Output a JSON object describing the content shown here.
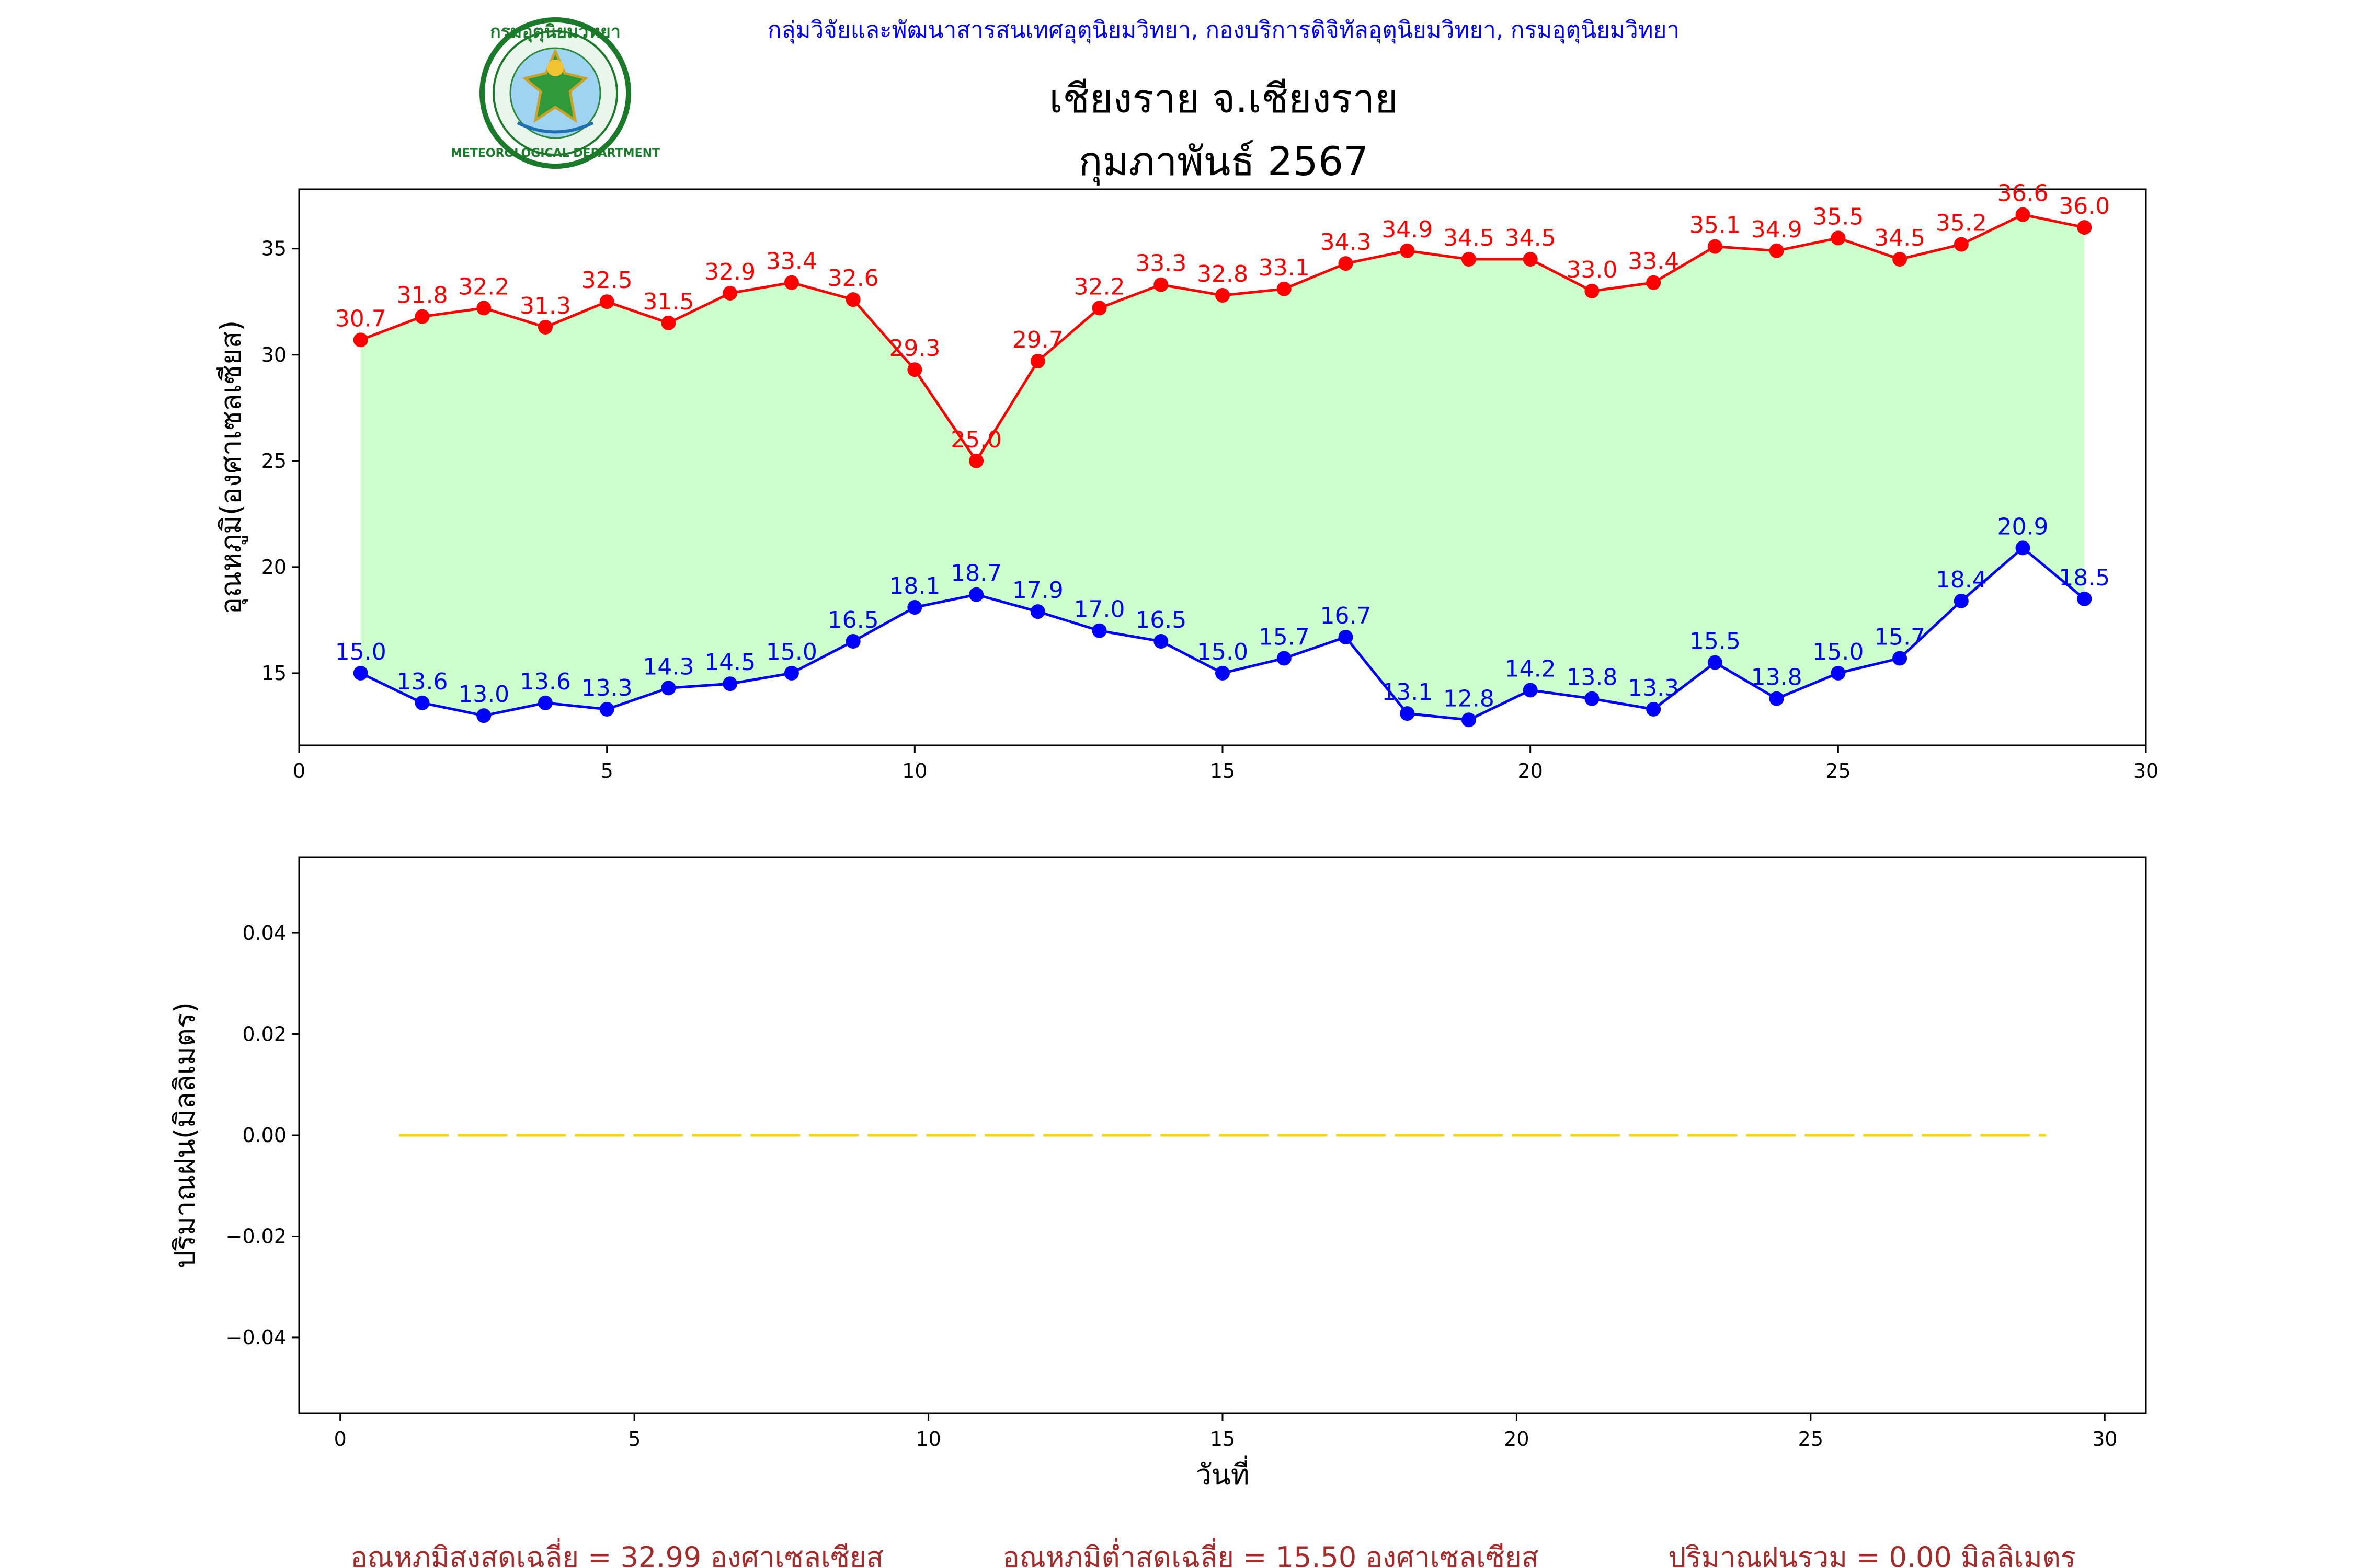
{
  "header": {
    "agency": "กลุ่มวิจัยและพัฒนาสารสนเทศอุตุนิยมวิทยา, กองบริการดิจิทัลอุตุนิยมวิทยา, กรมอุตุนิยมวิทยา",
    "title": "เชียงราย จ.เชียงราย",
    "subtitle": "กุมภาพันธ์ 2567",
    "logo_text_top": "กรมอุตุนิยมวิทยา",
    "logo_text_bottom": "METEOROLOGICAL DEPARTMENT"
  },
  "colors": {
    "max_line": "#ff0000",
    "min_line": "#0000ff",
    "fill": "#ccffcc",
    "rain_line": "#ffd700",
    "summary": "#a52a2a",
    "agency_text": "#0000ff"
  },
  "chart_data": [
    {
      "type": "line",
      "ylabel": "อุณหภูมิ(องศาเซลเซียส)",
      "xlabel": "",
      "xlim": [
        0,
        30
      ],
      "ylim": [
        11.6,
        37.8
      ],
      "xticks": [
        0,
        5,
        10,
        15,
        20,
        25,
        30
      ],
      "yticks": [
        15,
        20,
        25,
        30,
        35
      ],
      "x": [
        1,
        2,
        3,
        4,
        5,
        6,
        7,
        8,
        9,
        10,
        11,
        12,
        13,
        14,
        15,
        16,
        17,
        18,
        19,
        20,
        21,
        22,
        23,
        24,
        25,
        26,
        27,
        28,
        29
      ],
      "series": [
        {
          "key": "max",
          "values": [
            30.7,
            31.8,
            32.2,
            31.3,
            32.5,
            31.5,
            32.9,
            33.4,
            32.6,
            29.3,
            25.0,
            29.7,
            32.2,
            33.3,
            32.8,
            33.1,
            34.3,
            34.9,
            34.5,
            34.5,
            33.0,
            33.4,
            35.1,
            34.9,
            35.5,
            34.5,
            35.2,
            36.6,
            36.0
          ]
        },
        {
          "key": "min",
          "values": [
            15.0,
            13.6,
            13.0,
            13.6,
            13.3,
            14.3,
            14.5,
            15.0,
            16.5,
            18.1,
            18.7,
            17.9,
            17.0,
            16.5,
            15.0,
            15.7,
            16.7,
            13.1,
            12.8,
            14.2,
            13.8,
            13.3,
            15.5,
            13.8,
            15.0,
            15.7,
            18.4,
            20.9,
            18.5
          ]
        }
      ],
      "fill_between": true
    },
    {
      "type": "line",
      "ylabel": "ปริมาณฝน(มิลลิเมตร)",
      "xlabel": "วันที่",
      "xlim": [
        -0.7,
        30.7
      ],
      "ylim": [
        -0.055,
        0.055
      ],
      "xticks": [
        0,
        5,
        10,
        15,
        20,
        25,
        30
      ],
      "yticks": [
        "0.04",
        "0.02",
        "0.00",
        "−0.02",
        "−0.04"
      ],
      "x": [
        1,
        2,
        3,
        4,
        5,
        6,
        7,
        8,
        9,
        10,
        11,
        12,
        13,
        14,
        15,
        16,
        17,
        18,
        19,
        20,
        21,
        22,
        23,
        24,
        25,
        26,
        27,
        28,
        29
      ],
      "series": [
        {
          "key": "rain",
          "values": [
            0,
            0,
            0,
            0,
            0,
            0,
            0,
            0,
            0,
            0,
            0,
            0,
            0,
            0,
            0,
            0,
            0,
            0,
            0,
            0,
            0,
            0,
            0,
            0,
            0,
            0,
            0,
            0,
            0
          ]
        }
      ]
    }
  ],
  "summary": {
    "avg_max": "อุณหภูมิสูงสุดเฉลี่ย = 32.99 องศาเซลเซียส",
    "avg_min": "อุณหภูมิต่ำสุดเฉลี่ย = 15.50 องศาเซลเซียส",
    "rain_total": "ปริมาณฝนรวม = 0.00 มิลลิเมตร"
  }
}
